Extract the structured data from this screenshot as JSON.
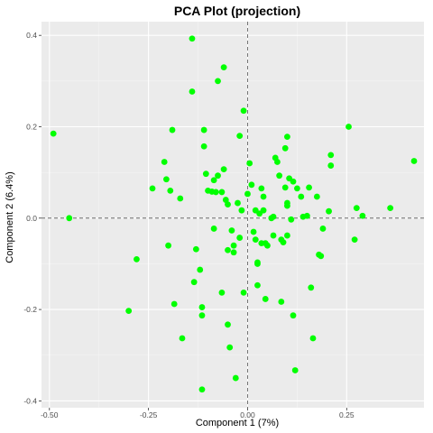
{
  "chart_data": {
    "type": "scatter",
    "title": "PCA Plot (projection)",
    "xlabel": "Component 1 (7%)",
    "ylabel": "Component 2 (6.4%)",
    "xlim": [
      -0.52,
      0.445
    ],
    "ylim": [
      -0.415,
      0.43
    ],
    "x_ticks": [
      -0.5,
      -0.25,
      0.0,
      0.25
    ],
    "x_tick_labels": [
      "-0.50",
      "-0.25",
      "0.00",
      "0.25"
    ],
    "y_ticks": [
      -0.4,
      -0.2,
      0.0,
      0.2,
      0.4
    ],
    "y_tick_labels": [
      "-0.4",
      "-0.2",
      "0.0",
      "0.2",
      "0.4"
    ],
    "reference_lines": {
      "x": 0,
      "y": 0,
      "style": "dashed"
    },
    "grid": true,
    "colors": {
      "panel_background": "#ebebeb",
      "grid_major": "#ffffff",
      "grid_minor": "#f5f5f5",
      "point": "#00ff00",
      "reference_line": "#555555"
    },
    "points": [
      [
        -0.49,
        0.185
      ],
      [
        -0.45,
        0.0
      ],
      [
        -0.3,
        -0.203
      ],
      [
        -0.28,
        -0.09
      ],
      [
        -0.24,
        0.065
      ],
      [
        -0.21,
        0.123
      ],
      [
        -0.205,
        0.085
      ],
      [
        -0.2,
        -0.06
      ],
      [
        -0.195,
        0.06
      ],
      [
        -0.19,
        0.193
      ],
      [
        -0.185,
        -0.188
      ],
      [
        -0.17,
        0.043
      ],
      [
        -0.165,
        -0.263
      ],
      [
        -0.14,
        0.393
      ],
      [
        -0.14,
        0.277
      ],
      [
        -0.135,
        -0.14
      ],
      [
        -0.13,
        -0.068
      ],
      [
        -0.12,
        -0.113
      ],
      [
        -0.115,
        -0.195
      ],
      [
        -0.115,
        -0.213
      ],
      [
        -0.115,
        -0.375
      ],
      [
        -0.11,
        0.193
      ],
      [
        -0.11,
        0.157
      ],
      [
        -0.105,
        0.097
      ],
      [
        -0.1,
        0.06
      ],
      [
        -0.09,
        0.058
      ],
      [
        -0.085,
        0.083
      ],
      [
        -0.085,
        -0.023
      ],
      [
        -0.08,
        0.057
      ],
      [
        -0.075,
        0.093
      ],
      [
        -0.075,
        0.3
      ],
      [
        -0.065,
        0.057
      ],
      [
        -0.065,
        -0.163
      ],
      [
        -0.06,
        0.33
      ],
      [
        -0.06,
        0.107
      ],
      [
        -0.055,
        0.04
      ],
      [
        -0.05,
        0.03
      ],
      [
        -0.05,
        -0.07
      ],
      [
        -0.05,
        -0.233
      ],
      [
        -0.045,
        -0.283
      ],
      [
        -0.04,
        -0.027
      ],
      [
        -0.035,
        -0.06
      ],
      [
        -0.035,
        -0.075
      ],
      [
        -0.03,
        -0.35
      ],
      [
        -0.025,
        0.033
      ],
      [
        -0.02,
        0.18
      ],
      [
        -0.02,
        -0.043
      ],
      [
        -0.015,
        0.017
      ],
      [
        -0.01,
        0.235
      ],
      [
        -0.01,
        -0.163
      ],
      [
        0.0,
        0.053
      ],
      [
        0.005,
        0.12
      ],
      [
        0.01,
        0.073
      ],
      [
        0.015,
        -0.03
      ],
      [
        0.02,
        -0.047
      ],
      [
        0.02,
        0.017
      ],
      [
        0.025,
        -0.097
      ],
      [
        0.025,
        -0.1
      ],
      [
        0.025,
        -0.147
      ],
      [
        0.03,
        0.01
      ],
      [
        0.035,
        0.065
      ],
      [
        0.035,
        -0.055
      ],
      [
        0.04,
        0.017
      ],
      [
        0.04,
        0.047
      ],
      [
        0.045,
        -0.055
      ],
      [
        0.045,
        -0.177
      ],
      [
        0.05,
        -0.06
      ],
      [
        0.06,
        0.0
      ],
      [
        0.065,
        0.003
      ],
      [
        0.065,
        -0.038
      ],
      [
        0.07,
        0.132
      ],
      [
        0.075,
        0.123
      ],
      [
        0.08,
        0.093
      ],
      [
        0.085,
        -0.047
      ],
      [
        0.085,
        -0.183
      ],
      [
        0.09,
        -0.053
      ],
      [
        0.095,
        0.153
      ],
      [
        0.095,
        0.067
      ],
      [
        0.1,
        0.178
      ],
      [
        0.1,
        0.033
      ],
      [
        0.1,
        0.027
      ],
      [
        0.1,
        -0.038
      ],
      [
        0.105,
        0.087
      ],
      [
        0.11,
        -0.003
      ],
      [
        0.115,
        0.08
      ],
      [
        0.115,
        -0.213
      ],
      [
        0.12,
        -0.333
      ],
      [
        0.125,
        0.065
      ],
      [
        0.135,
        0.047
      ],
      [
        0.14,
        0.003
      ],
      [
        0.15,
        0.005
      ],
      [
        0.155,
        0.067
      ],
      [
        0.16,
        -0.152
      ],
      [
        0.165,
        -0.263
      ],
      [
        0.175,
        0.047
      ],
      [
        0.18,
        -0.08
      ],
      [
        0.185,
        -0.083
      ],
      [
        0.19,
        -0.023
      ],
      [
        0.205,
        0.015
      ],
      [
        0.21,
        0.138
      ],
      [
        0.21,
        0.115
      ],
      [
        0.255,
        0.2
      ],
      [
        0.27,
        -0.047
      ],
      [
        0.275,
        0.022
      ],
      [
        0.29,
        0.005
      ],
      [
        0.36,
        0.022
      ],
      [
        0.42,
        0.125
      ]
    ]
  }
}
